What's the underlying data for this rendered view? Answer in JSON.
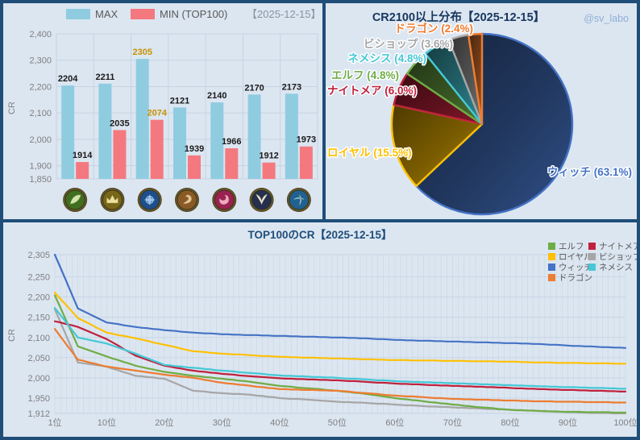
{
  "watermark": "@sv_labo",
  "chart_data": [
    {
      "type": "bar",
      "panel": "top-left",
      "legend": [
        {
          "label": "MAX",
          "color": "#8FCCE0"
        },
        {
          "label": "MIN (TOP100)",
          "color": "#F4797E"
        }
      ],
      "date_label": "【2025-12-15】",
      "ylabel": "CR",
      "ylim": [
        1850,
        2400
      ],
      "yticks": [
        1850,
        1900,
        2000,
        2100,
        2200,
        2300,
        2400
      ],
      "categories": [
        "エルフ",
        "ロイヤル",
        "ウィッチ",
        "ドラゴン",
        "ナイトメア",
        "ビショップ",
        "ネメシス"
      ],
      "icons": [
        "elf-icon",
        "royal-icon",
        "witch-icon",
        "dragon-icon",
        "nightmare-icon",
        "bishop-icon",
        "nemesis-icon"
      ],
      "series": [
        {
          "name": "MAX",
          "values": [
            2204,
            2211,
            2305,
            2121,
            2140,
            2170,
            2173
          ]
        },
        {
          "name": "MIN (TOP100)",
          "values": [
            1914,
            2035,
            2074,
            1939,
            1966,
            1912,
            1973
          ]
        }
      ],
      "highlight_category_index": 2,
      "highlight_label_color": "#C99200",
      "label_color": "#1a1a1a"
    },
    {
      "type": "pie",
      "panel": "top-right",
      "title": "CR2100以上分布【2025-12-15】",
      "watermark": "@sv_labo",
      "start": "top",
      "direction": "clockwise",
      "slices": [
        {
          "label": "ウィッチ",
          "pct": 63.1,
          "color": "#4472C4",
          "display": "ウィッチ (63.1%)"
        },
        {
          "label": "ロイヤル",
          "pct": 15.5,
          "color": "#FFC000",
          "display": "ロイヤル (15.5%)"
        },
        {
          "label": "ナイトメア",
          "pct": 6.0,
          "color": "#C0223C",
          "display": "ナイトメア (6.0%)"
        },
        {
          "label": "エルフ",
          "pct": 4.8,
          "color": "#70AD47",
          "display": "エルフ (4.8%)"
        },
        {
          "label": "ネメシス",
          "pct": 4.8,
          "color": "#45C8D6",
          "display": "ネメシス (4.8%)"
        },
        {
          "label": "ビショップ",
          "pct": 3.6,
          "color": "#A6A6A6",
          "display": "ビショップ (3.6%)"
        },
        {
          "label": "ドラゴン",
          "pct": 2.4,
          "color": "#ED7D31",
          "display": "ドラゴン (2.4%)"
        }
      ]
    },
    {
      "type": "line",
      "panel": "bottom",
      "title": "TOP100のCR【2025-12-15】",
      "ylabel": "CR",
      "ylim": [
        1912,
        2305
      ],
      "yticks": [
        2305,
        2250,
        2200,
        2150,
        2100,
        2050,
        2000,
        1950,
        1912
      ],
      "xticks": [
        "1位",
        "10位",
        "20位",
        "30位",
        "40位",
        "50位",
        "60位",
        "70位",
        "80位",
        "90位",
        "100位"
      ],
      "x_sample_ranks": [
        1,
        5,
        10,
        15,
        20,
        25,
        30,
        35,
        40,
        45,
        50,
        55,
        60,
        65,
        70,
        75,
        80,
        85,
        90,
        95,
        100
      ],
      "series": [
        {
          "name": "エルフ",
          "color": "#70AD47",
          "values": [
            2204,
            2078,
            2053,
            2030,
            2015,
            2005,
            1998,
            1990,
            1980,
            1974,
            1968,
            1960,
            1950,
            1942,
            1934,
            1927,
            1921,
            1918,
            1916,
            1915,
            1914
          ]
        },
        {
          "name": "ロイヤル",
          "color": "#FFC000",
          "values": [
            2211,
            2148,
            2112,
            2098,
            2082,
            2066,
            2060,
            2056,
            2052,
            2050,
            2048,
            2046,
            2044,
            2043,
            2042,
            2041,
            2040,
            2038,
            2037,
            2036,
            2035
          ]
        },
        {
          "name": "ウィッチ",
          "color": "#4472C4",
          "values": [
            2305,
            2172,
            2137,
            2126,
            2118,
            2112,
            2108,
            2106,
            2104,
            2102,
            2100,
            2098,
            2094,
            2092,
            2090,
            2088,
            2086,
            2084,
            2080,
            2077,
            2074
          ]
        },
        {
          "name": "ドラゴン",
          "color": "#ED7D31",
          "values": [
            2121,
            2045,
            2028,
            2018,
            2008,
            2000,
            1988,
            1980,
            1972,
            1970,
            1968,
            1962,
            1956,
            1952,
            1948,
            1946,
            1944,
            1942,
            1941,
            1940,
            1939
          ]
        },
        {
          "name": "ナイトメア",
          "color": "#C0223C",
          "values": [
            2140,
            2126,
            2096,
            2055,
            2030,
            2018,
            2010,
            2004,
            1999,
            1996,
            1994,
            1990,
            1986,
            1983,
            1980,
            1978,
            1975,
            1972,
            1970,
            1968,
            1966
          ]
        },
        {
          "name": "ビショップ",
          "color": "#A6A6A6",
          "values": [
            2170,
            2038,
            2028,
            2005,
            1998,
            1968,
            1962,
            1958,
            1950,
            1946,
            1941,
            1938,
            1934,
            1930,
            1927,
            1924,
            1921,
            1918,
            1915,
            1913,
            1912
          ]
        },
        {
          "name": "ネメシス",
          "color": "#45C8D6",
          "values": [
            2173,
            2100,
            2085,
            2060,
            2032,
            2025,
            2018,
            2012,
            2006,
            2003,
            2000,
            1996,
            1992,
            1989,
            1987,
            1984,
            1982,
            1979,
            1977,
            1975,
            1973
          ]
        }
      ],
      "legend_columns": [
        [
          "エルフ",
          "ロイヤル",
          "ウィッチ",
          "ドラゴン"
        ],
        [
          "ナイトメア",
          "ビショップ",
          "ネメシス"
        ]
      ]
    }
  ]
}
